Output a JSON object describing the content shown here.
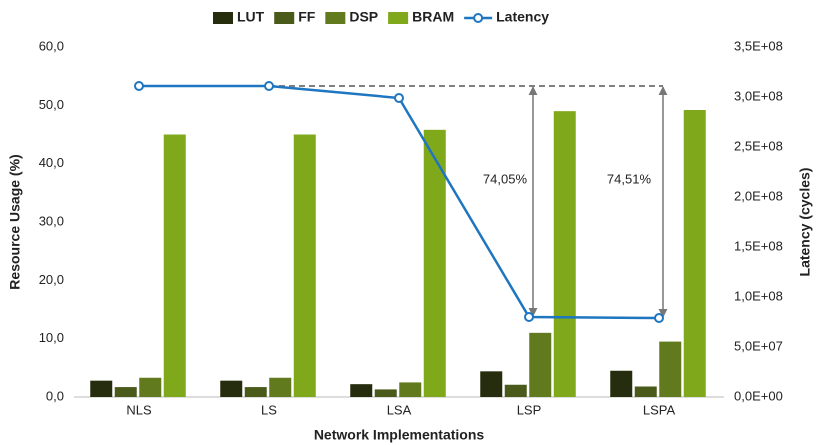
{
  "chart_data": {
    "type": "bar_line",
    "x_label": "Network Implementations",
    "y_label": "Resource Usage (%)",
    "y2_label": "Latency (cycles)",
    "categories": [
      "NLS",
      "LS",
      "LSA",
      "LSP",
      "LSPA"
    ],
    "series": [
      {
        "name": "LUT",
        "color": "#262d0e",
        "values": [
          2.8,
          2.8,
          2.2,
          4.4,
          4.5
        ]
      },
      {
        "name": "FF",
        "color": "#4a5a1a",
        "values": [
          1.7,
          1.7,
          1.3,
          2.1,
          1.8
        ]
      },
      {
        "name": "DSP",
        "color": "#627a1e",
        "values": [
          3.3,
          3.3,
          2.5,
          11.0,
          9.5
        ]
      },
      {
        "name": "BRAM",
        "color": "#7fa81a",
        "values": [
          45.0,
          45.0,
          45.8,
          49.0,
          49.2
        ]
      },
      {
        "name": "Latency",
        "color": "#1f76c0",
        "axis": "y2",
        "type": "line",
        "values": [
          311000000,
          311000000,
          299000000,
          80000000,
          79000000
        ]
      }
    ],
    "annotations": [
      "74,05%",
      "74,51%"
    ],
    "ylim": [
      0,
      60
    ],
    "yticks": [
      {
        "value": 0,
        "label": "0,0"
      },
      {
        "value": 10,
        "label": "10,0"
      },
      {
        "value": 20,
        "label": "20,0"
      },
      {
        "value": 30,
        "label": "30,0"
      },
      {
        "value": 40,
        "label": "40,0"
      },
      {
        "value": 50,
        "label": "50,0"
      },
      {
        "value": 60,
        "label": "60,0"
      }
    ],
    "y2lim": [
      0,
      350000000
    ],
    "y2ticks": [
      {
        "value": 0,
        "label": "0,0E+00"
      },
      {
        "value": 50000000,
        "label": "5,0E+07"
      },
      {
        "value": 100000000,
        "label": "1,0E+08"
      },
      {
        "value": 150000000,
        "label": "1,5E+08"
      },
      {
        "value": 200000000,
        "label": "2,0E+08"
      },
      {
        "value": 250000000,
        "label": "2,5E+08"
      },
      {
        "value": 300000000,
        "label": "3,0E+08"
      },
      {
        "value": 350000000,
        "label": "3,5E+08"
      }
    ],
    "grid": false,
    "legend": "top"
  }
}
